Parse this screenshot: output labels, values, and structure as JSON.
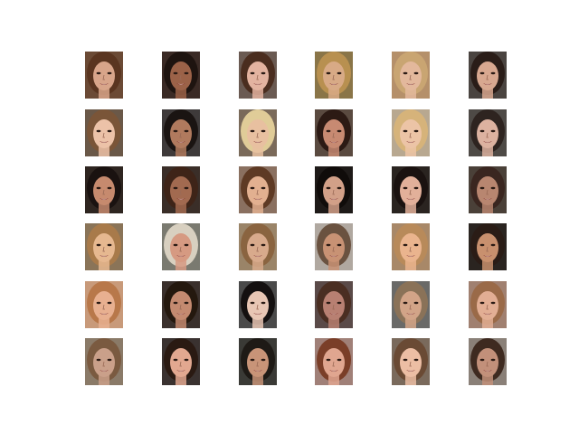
{
  "figure": {
    "rows": 6,
    "cols": 6,
    "tiles": [
      {
        "bg": "#6b4a35",
        "hair": "#5a3520",
        "skin": "#d8a58a"
      },
      {
        "bg": "#3a2a25",
        "hair": "#1e1410",
        "skin": "#9b6248"
      },
      {
        "bg": "#6a5a52",
        "hair": "#4a2d1f",
        "skin": "#e3b3a0"
      },
      {
        "bg": "#8a7548",
        "hair": "#b89050",
        "skin": "#d8aa86"
      },
      {
        "bg": "#b5906a",
        "hair": "#c9a572",
        "skin": "#e3b89c"
      },
      {
        "bg": "#4a4440",
        "hair": "#2a1d18",
        "skin": "#d8a890"
      },
      {
        "bg": "#6a5848",
        "hair": "#7a5538",
        "skin": "#ecc2a8"
      },
      {
        "bg": "#3e3a3a",
        "hair": "#1a1412",
        "skin": "#b07a5e"
      },
      {
        "bg": "#7a6a5a",
        "hair": "#e0cc98",
        "skin": "#e8c0a0"
      },
      {
        "bg": "#5a4a40",
        "hair": "#2c1a14",
        "skin": "#c78a72"
      },
      {
        "bg": "#b8a890",
        "hair": "#d6b37a",
        "skin": "#ecc4a6"
      },
      {
        "bg": "#4e4a46",
        "hair": "#2e2420",
        "skin": "#dcb2a0"
      },
      {
        "bg": "#2e2520",
        "hair": "#1a1210",
        "skin": "#c68a6e"
      },
      {
        "bg": "#3a2e28",
        "hair": "#3e2418",
        "skin": "#a26a50"
      },
      {
        "bg": "#8a7060",
        "hair": "#5e3a24",
        "skin": "#e2b090"
      },
      {
        "bg": "#1e1a18",
        "hair": "#100c0a",
        "skin": "#d2a088"
      },
      {
        "bg": "#2a2420",
        "hair": "#1a1210",
        "skin": "#e2b09a"
      },
      {
        "bg": "#4a4038",
        "hair": "#3a2620",
        "skin": "#b88670"
      },
      {
        "bg": "#8a7458",
        "hair": "#a87a4a",
        "skin": "#e6b890"
      },
      {
        "bg": "#7a7a70",
        "hair": "#d8d0c0",
        "skin": "#d69a82"
      },
      {
        "bg": "#9a8468",
        "hair": "#8a6440",
        "skin": "#d8aa8c"
      },
      {
        "bg": "#b0a8a0",
        "hair": "#6a5240",
        "skin": "#c89274"
      },
      {
        "bg": "#a88868",
        "hair": "#b88a5a",
        "skin": "#eab48e"
      },
      {
        "bg": "#2a2420",
        "hair": "#2a1c16",
        "skin": "#c8906e"
      },
      {
        "bg": "#c89a7a",
        "hair": "#b8784a",
        "skin": "#e8b090"
      },
      {
        "bg": "#3a302c",
        "hair": "#24180e",
        "skin": "#c48a70"
      },
      {
        "bg": "#4a4a4a",
        "hair": "#141010",
        "skin": "#e8c6b4"
      },
      {
        "bg": "#5a4a48",
        "hair": "#4a2e22",
        "skin": "#b88072"
      },
      {
        "bg": "#6a6a68",
        "hair": "#8a7258",
        "skin": "#d2a488"
      },
      {
        "bg": "#a08070",
        "hair": "#9a6a48",
        "skin": "#e2ae94"
      },
      {
        "bg": "#8a7a68",
        "hair": "#7a5a40",
        "skin": "#caa08a"
      },
      {
        "bg": "#3a3230",
        "hair": "#2a1a12",
        "skin": "#e2a890"
      },
      {
        "bg": "#3a3a36",
        "hair": "#1e1a16",
        "skin": "#c89478"
      },
      {
        "bg": "#a08078",
        "hair": "#7a3e28",
        "skin": "#e0a690"
      },
      {
        "bg": "#7a6a5c",
        "hair": "#6a4a34",
        "skin": "#ecbea4"
      },
      {
        "bg": "#8a8078",
        "hair": "#3e2a20",
        "skin": "#c2907a"
      }
    ]
  }
}
